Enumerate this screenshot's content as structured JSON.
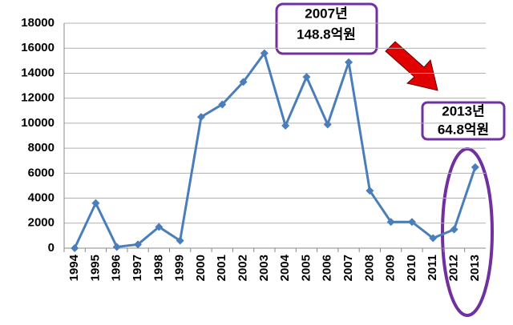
{
  "chart_data": {
    "type": "line",
    "categories": [
      "1994",
      "1995",
      "1996",
      "1997",
      "1998",
      "1999",
      "2000",
      "2001",
      "2002",
      "2003",
      "2004",
      "2005",
      "2006",
      "2007",
      "2008",
      "2009",
      "2010",
      "2011",
      "2012",
      "2013"
    ],
    "series": [
      {
        "color": "#4a7ebb",
        "values": [
          0,
          3600,
          100,
          300,
          1700,
          600,
          10500,
          11500,
          13300,
          15600,
          9800,
          13700,
          9900,
          14880,
          4600,
          2100,
          2100,
          800,
          1500,
          6480
        ]
      }
    ],
    "ylim": [
      0,
      18000
    ],
    "yticks": [
      0,
      2000,
      4000,
      6000,
      8000,
      10000,
      12000,
      14000,
      16000,
      18000
    ],
    "grid": true,
    "annotations": [
      {
        "lines": [
          "2007년",
          "148.8억원"
        ]
      },
      {
        "lines": [
          "2013년",
          "64.8억원"
        ]
      }
    ]
  }
}
